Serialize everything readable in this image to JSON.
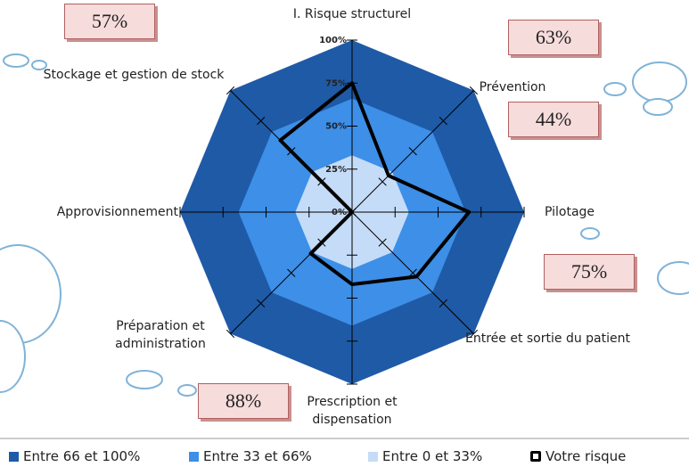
{
  "chart_data": {
    "type": "radar",
    "categories": [
      "I. Risque structurel",
      "Prévention",
      "Pilotage",
      "Entrée et sortie du patient",
      "Prescription et dispensation",
      "Préparation et administration",
      "Approvisionnement",
      "Stockage et gestion de stock"
    ],
    "series": [
      {
        "name": "Entre 66 et 100%",
        "color": "#1f5aa6",
        "values": [
          100,
          100,
          100,
          100,
          100,
          100,
          100,
          100
        ]
      },
      {
        "name": "Entre 33 et 66%",
        "color": "#3d8fe8",
        "values": [
          66,
          66,
          66,
          66,
          66,
          66,
          66,
          66
        ]
      },
      {
        "name": "Entre 0 et 33%",
        "color": "#c5dcf8",
        "values": [
          33,
          33,
          33,
          33,
          33,
          33,
          33,
          33
        ]
      },
      {
        "name": "Votre risque",
        "color": "#000000",
        "values": [
          75,
          30,
          68,
          53,
          42,
          34,
          0,
          59
        ]
      }
    ],
    "ylim": [
      0,
      100
    ],
    "yticks": [
      {
        "value": 0,
        "label": "0%"
      },
      {
        "value": 25,
        "label": "25%"
      },
      {
        "value": 50,
        "label": "50%"
      },
      {
        "value": 75,
        "label": "75%"
      },
      {
        "value": 100,
        "label": "100%"
      }
    ],
    "annotations": [
      "57%",
      "63%",
      "44%",
      "75%",
      "88%"
    ]
  }
}
